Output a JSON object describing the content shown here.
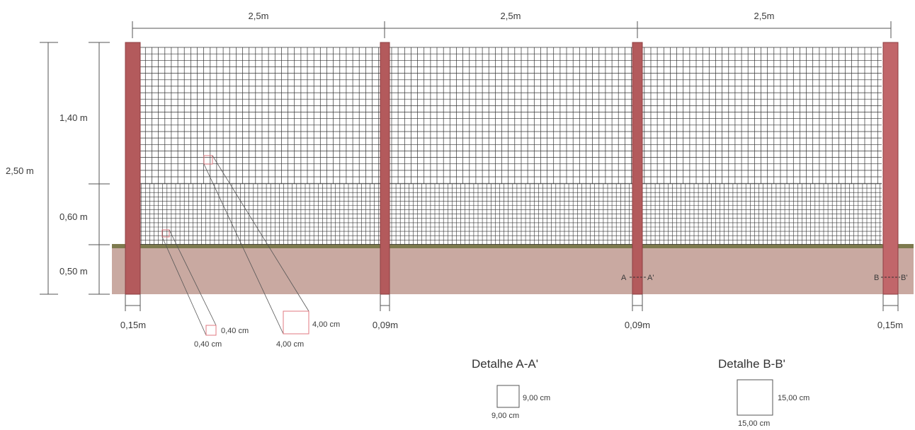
{
  "spans": [
    {
      "label": "2,5m"
    },
    {
      "label": "2,5m"
    },
    {
      "label": "2,5m"
    }
  ],
  "heights": {
    "total": "2,50 m",
    "upper_mesh": "1,40 m",
    "lower_mesh": "0,60 m",
    "buried": "0,50 m"
  },
  "posts": [
    {
      "width_label": "0,15m"
    },
    {
      "width_label": "0,09m"
    },
    {
      "width_label": "0,09m"
    },
    {
      "width_label": "0,15m"
    }
  ],
  "mesh_details": {
    "fine": {
      "w": "0,40 cm",
      "h": "0,40 cm"
    },
    "coarse": {
      "w": "4,00 cm",
      "h": "4,00 cm"
    }
  },
  "sections": {
    "a": {
      "start": "A",
      "end": "A'",
      "title": "Detalhe A-A'",
      "w": "9,00 cm",
      "h": "9,00 cm"
    },
    "b": {
      "start": "B",
      "end": "B'",
      "title": "Detalhe B-B'",
      "w": "15,00 cm",
      "h": "15,00 cm"
    }
  },
  "colors": {
    "post": "#b35a5c",
    "post_edge": "#8e3f42",
    "soil": "#c9a9a1",
    "ground_line": "#7d7a4e",
    "mesh": "#333333",
    "detail_box": "#e07a80"
  }
}
